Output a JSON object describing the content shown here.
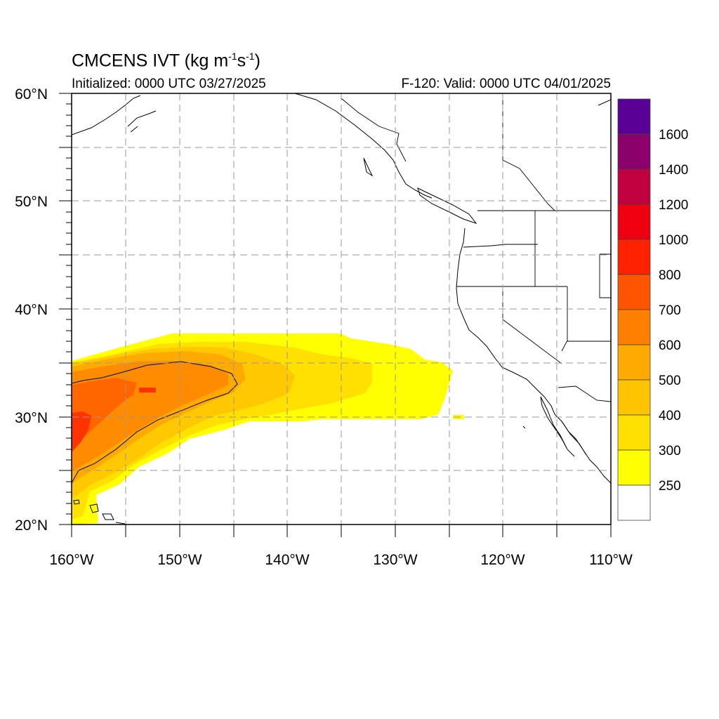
{
  "header": {
    "title_main": "CMCENS IVT (kg m",
    "title_exp1": "-1",
    "title_mid": "s",
    "title_exp2": "-1",
    "title_end": ")",
    "initialized": "Initialized: 0000 UTC 03/27/2025",
    "valid": "F-120: Valid: 0000 UTC 04/01/2025"
  },
  "map": {
    "extent": {
      "lon_min": -160,
      "lon_max": -110,
      "lat_min": 20,
      "lat_max": 60
    },
    "lat_labels": [
      "60°N",
      "50°N",
      "40°N",
      "30°N",
      "20°N"
    ],
    "lon_labels": [
      "160°W",
      "150°W",
      "140°W",
      "130°W",
      "120°W",
      "110°W"
    ],
    "gridlines": "dashed",
    "colors": {
      "land_outline": "#000000",
      "grid": "#999999",
      "background": "#ffffff"
    }
  },
  "ivt_field": {
    "description_units": "kg m-1 s-1",
    "contour_level": 700,
    "color_levels": [
      250,
      300,
      400,
      500,
      600,
      700,
      800,
      1000,
      1200,
      1400,
      1600
    ],
    "colors": [
      "#ffff00",
      "#ffe000",
      "#ffc800",
      "#ffaa00",
      "#ff8c00",
      "#ff6600",
      "#ff3300",
      "#ee0011",
      "#c0003f",
      "#8b006b",
      "#5b0096"
    ]
  },
  "colorbar": {
    "labels": [
      "1600",
      "1400",
      "1200",
      "1000",
      "800",
      "700",
      "600",
      "500",
      "400",
      "300",
      "250"
    ],
    "colors_top_to_bottom": [
      "#5b0096",
      "#8b006b",
      "#c0003f",
      "#ee0011",
      "#ff2200",
      "#ff5500",
      "#ff8000",
      "#ffaa00",
      "#ffc400",
      "#ffe000",
      "#ffff00",
      "#ffffff"
    ]
  }
}
